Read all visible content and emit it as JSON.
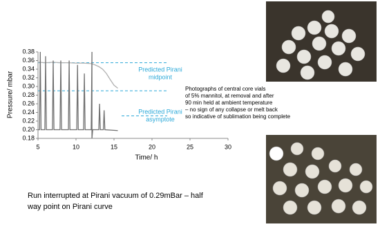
{
  "chart_data": {
    "type": "line",
    "ylabel": "Pressure/ mbar",
    "xlabel": "Time/ h",
    "xlim": [
      5,
      30
    ],
    "xticks": [
      5,
      10,
      15,
      20,
      25,
      30
    ],
    "ylim": [
      0.18,
      0.38
    ],
    "yticks": [
      0.18,
      {
        "value": 0.2,
        "label": "0.20"
      },
      0.22,
      0.24,
      0.26,
      0.28,
      {
        "value": 0.3,
        "label": "0.30"
      },
      0.32,
      0.34,
      0.36,
      0.38
    ],
    "series": [
      {
        "color": "#b0b0b0",
        "x": [
          5,
          6,
          7,
          8,
          9,
          10,
          11,
          12,
          12.5,
          13,
          13.5,
          14,
          14.5,
          15,
          15.5
        ],
        "values": [
          0.356,
          0.355,
          0.356,
          0.355,
          0.355,
          0.354,
          0.354,
          0.353,
          0.35,
          0.346,
          0.34,
          0.33,
          0.316,
          0.303,
          0.296
        ]
      },
      {
        "color": "#707070",
        "x": [
          5.0,
          5.2,
          5.3,
          5.4,
          5.9,
          6.0,
          6.1,
          6.9,
          7.0,
          7.1,
          7.9,
          8.0,
          8.1,
          9.0,
          9.1,
          9.2,
          10.1,
          10.2,
          10.3,
          11.0,
          11.1,
          11.2,
          12.0,
          12.1,
          12.1,
          12.2,
          13.0,
          13.1,
          13.2,
          13.6,
          13.7,
          13.8,
          15.5
        ],
        "values": [
          0.2,
          0.2,
          0.38,
          0.2,
          0.2,
          0.37,
          0.2,
          0.2,
          0.36,
          0.2,
          0.2,
          0.36,
          0.2,
          0.2,
          0.36,
          0.2,
          0.2,
          0.35,
          0.2,
          0.2,
          0.33,
          0.2,
          0.2,
          0.38,
          0.18,
          0.2,
          0.2,
          0.26,
          0.2,
          0.2,
          0.245,
          0.2,
          0.198
        ]
      }
    ],
    "reference_color": "#2aa8d8",
    "reference_lines": [
      {
        "value": 0.355,
        "xrange": [
          5,
          22
        ]
      },
      {
        "value": 0.29,
        "xrange": [
          5,
          22
        ]
      },
      {
        "value": 0.232,
        "xrange": [
          16,
          22
        ]
      }
    ],
    "annotations": [
      {
        "lines": [
          "Predicted Pirani",
          "midpoint"
        ]
      },
      {
        "lines": [
          "Predicted Pirani",
          "asymptote"
        ]
      }
    ]
  },
  "caption": {
    "lines": [
      "Photographs of central core vials",
      "of 5% mannitol, at removal and after",
      "90 min held at ambient temperature",
      "– no sign of any collapse or melt back",
      "so indicative of sublimation being complete"
    ]
  },
  "footer": {
    "lines": [
      "Run interrupted at Pirani vacuum of 0.29mBar – half",
      "way point on Pirani curve"
    ]
  }
}
